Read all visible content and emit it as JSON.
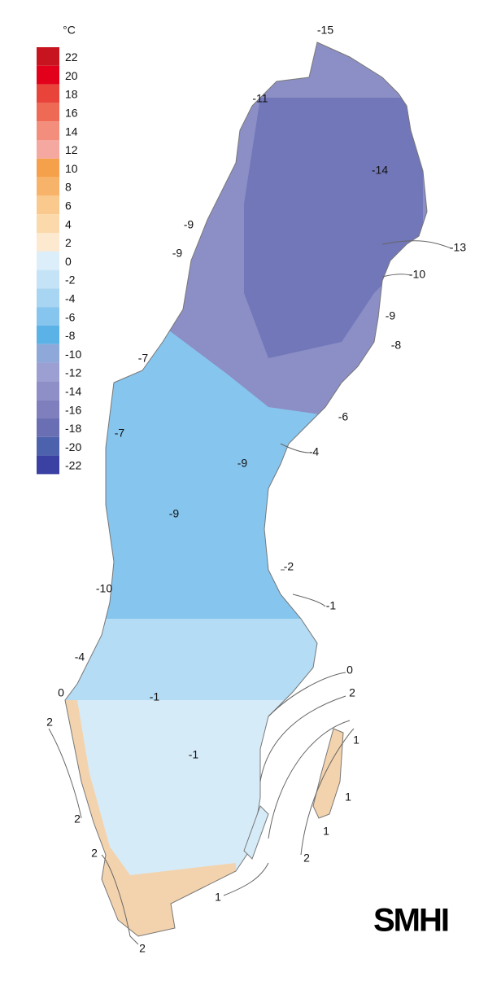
{
  "legend": {
    "unit": "°C",
    "values": [
      22,
      20,
      18,
      16,
      14,
      12,
      10,
      8,
      6,
      4,
      2,
      0,
      -2,
      -4,
      -6,
      -8,
      -10,
      -12,
      -14,
      -16,
      -18,
      -20,
      -22
    ],
    "colors": [
      "#c8141e",
      "#e3001b",
      "#e8443a",
      "#ee6a55",
      "#f38e7c",
      "#f5a8a0",
      "#f5a04a",
      "#f7b36a",
      "#f9c98d",
      "#fbd9ab",
      "#fde8d0",
      "#dceefa",
      "#c5e3f6",
      "#a8d5f2",
      "#86c5ee",
      "#5bb2e6",
      "#8ea8d9",
      "#9b9fd2",
      "#8f8fc7",
      "#7f7fbd",
      "#6a6fb3",
      "#4c62ad",
      "#3b40a3"
    ]
  },
  "contour_labels": [
    -15,
    -11,
    -14,
    -13,
    -9,
    -9,
    -10,
    -9,
    -8,
    -7,
    -6,
    -7,
    -9,
    -4,
    -9,
    -2,
    -1,
    -10,
    -4,
    0,
    2,
    0,
    -1,
    2,
    -1,
    1,
    1,
    1,
    2,
    2,
    2,
    1,
    2
  ],
  "logo": "SMHI"
}
